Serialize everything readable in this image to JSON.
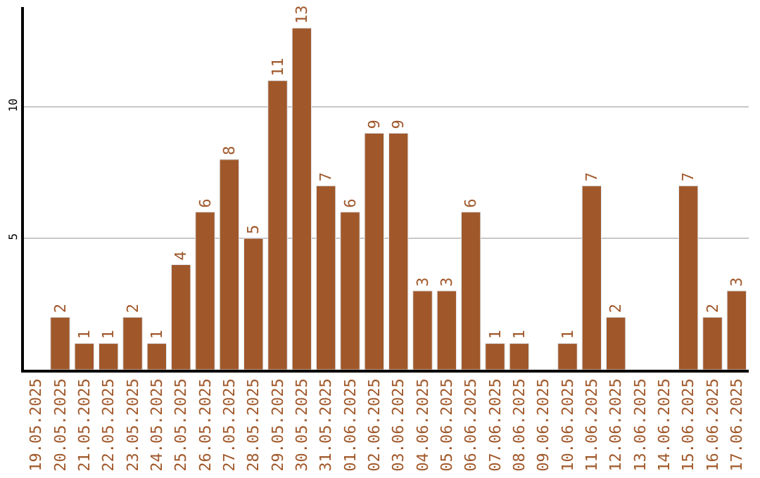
{
  "chart_data": {
    "type": "bar",
    "categories": [
      "19.05.2025",
      "20.05.2025",
      "21.05.2025",
      "22.05.2025",
      "23.05.2025",
      "24.05.2025",
      "25.05.2025",
      "26.05.2025",
      "27.05.2025",
      "28.05.2025",
      "29.05.2025",
      "30.05.2025",
      "31.05.2025",
      "01.06.2025",
      "02.06.2025",
      "03.06.2025",
      "04.06.2025",
      "05.06.2025",
      "06.06.2025",
      "07.06.2025",
      "08.06.2025",
      "09.06.2025",
      "10.06.2025",
      "11.06.2025",
      "12.06.2025",
      "13.06.2025",
      "14.06.2025",
      "15.06.2025",
      "16.06.2025",
      "17.06.2025"
    ],
    "values": [
      null,
      2,
      1,
      1,
      2,
      1,
      4,
      6,
      8,
      5,
      11,
      13,
      7,
      6,
      9,
      9,
      3,
      3,
      6,
      1,
      1,
      null,
      1,
      7,
      2,
      null,
      null,
      7,
      2,
      3
    ],
    "color": "#a0582a",
    "ylim": [
      0,
      13.8
    ],
    "yticks": [
      5,
      10
    ],
    "grid": "y",
    "data_labels": true,
    "legend": false
  }
}
